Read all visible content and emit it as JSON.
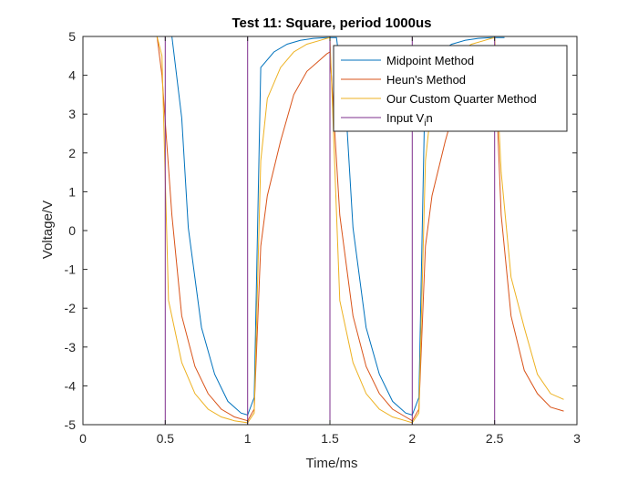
{
  "chart_data": {
    "type": "line",
    "title": "Test 11: Square, period 1000us",
    "xlabel": "Time/ms",
    "ylabel": "Voltage/V",
    "xlim": [
      0,
      3
    ],
    "ylim": [
      -5,
      5
    ],
    "xticks": [
      0,
      0.5,
      1,
      1.5,
      2,
      2.5,
      3
    ],
    "xtick_labels": [
      "0",
      "0.5",
      "1",
      "1.5",
      "2",
      "2.5",
      "3"
    ],
    "yticks": [
      -5,
      -4,
      -3,
      -2,
      -1,
      0,
      1,
      2,
      3,
      4,
      5
    ],
    "ytick_labels": [
      "-5",
      "-4",
      "-3",
      "-2",
      "-1",
      "0",
      "1",
      "2",
      "3",
      "4",
      "5"
    ],
    "grid": false,
    "legend_position": "top-right",
    "series": [
      {
        "name": "Midpoint Method",
        "color": "#0072BD",
        "x": [
          0,
          0.54,
          0.6,
          0.64,
          0.72,
          0.8,
          0.88,
          0.96,
          1.0,
          1.04,
          1.08,
          1.16,
          1.24,
          1.32,
          1.4,
          1.48,
          1.54,
          1.6,
          1.64,
          1.72,
          1.8,
          1.88,
          1.96,
          2.0,
          2.04,
          2.08,
          2.16,
          2.24,
          2.32,
          2.4,
          2.48,
          2.54,
          2.56
        ],
        "y": [
          5,
          5,
          2.9,
          0.07,
          -2.5,
          -3.7,
          -4.4,
          -4.7,
          -4.75,
          -4.3,
          4.2,
          4.6,
          4.8,
          4.9,
          4.95,
          4.97,
          4.97,
          2.9,
          0.07,
          -2.5,
          -3.7,
          -4.4,
          -4.7,
          -4.75,
          -4.3,
          4.2,
          4.6,
          4.8,
          4.9,
          4.95,
          4.97,
          4.97,
          4.97
        ]
      },
      {
        "name": "Heun's Method",
        "color": "#D95319",
        "x": [
          0,
          0.45,
          0.48,
          0.54,
          0.6,
          0.68,
          0.76,
          0.84,
          0.92,
          1.0,
          1.04,
          1.08,
          1.12,
          1.2,
          1.28,
          1.36,
          1.44,
          1.48,
          1.5,
          1.56,
          1.64,
          1.72,
          1.8,
          1.88,
          1.96,
          2.0,
          2.04,
          2.08,
          2.12,
          2.2,
          2.28,
          2.36,
          2.44,
          2.48,
          2.5,
          2.54,
          2.6,
          2.68,
          2.76,
          2.84,
          2.92
        ],
        "y": [
          5,
          5,
          4.0,
          0.4,
          -2.2,
          -3.5,
          -4.2,
          -4.6,
          -4.8,
          -4.9,
          -4.6,
          -0.4,
          0.9,
          2.3,
          3.5,
          4.1,
          4.4,
          4.55,
          4.6,
          0.4,
          -2.2,
          -3.5,
          -4.2,
          -4.6,
          -4.8,
          -4.9,
          -4.6,
          -0.4,
          0.9,
          2.3,
          3.5,
          4.1,
          4.4,
          4.55,
          4.6,
          0.4,
          -2.2,
          -3.6,
          -4.2,
          -4.55,
          -4.65
        ]
      },
      {
        "name": "Our Custom Quarter Method",
        "color": "#EDB120",
        "x": [
          0,
          0.45,
          0.48,
          0.52,
          0.6,
          0.68,
          0.76,
          0.84,
          0.92,
          1.0,
          1.04,
          1.08,
          1.12,
          1.2,
          1.28,
          1.36,
          1.44,
          1.48,
          1.5,
          1.56,
          1.64,
          1.72,
          1.8,
          1.88,
          1.96,
          2.0,
          2.04,
          2.08,
          2.12,
          2.2,
          2.28,
          2.36,
          2.44,
          2.48,
          2.5,
          2.54,
          2.6,
          2.68,
          2.76,
          2.84,
          2.92
        ],
        "y": [
          5,
          5,
          4.5,
          -1.8,
          -3.4,
          -4.2,
          -4.6,
          -4.8,
          -4.9,
          -4.95,
          -4.7,
          1.8,
          3.4,
          4.2,
          4.6,
          4.8,
          4.9,
          4.95,
          4.97,
          -1.8,
          -3.4,
          -4.2,
          -4.6,
          -4.8,
          -4.9,
          -4.95,
          -4.7,
          1.8,
          3.4,
          4.2,
          4.6,
          4.8,
          4.9,
          4.95,
          4.97,
          1.5,
          -1.2,
          -2.5,
          -3.7,
          -4.2,
          -4.35
        ]
      },
      {
        "name": "Input V_in",
        "color": "#7E2F8E",
        "x": [
          0,
          0.5,
          0.5,
          1.0,
          1.0,
          1.5,
          1.5,
          2.0,
          2.0,
          2.5,
          2.5,
          3.0
        ],
        "y": [
          5,
          5,
          -5,
          -5,
          5,
          5,
          -5,
          -5,
          5,
          5,
          -5,
          -5
        ]
      }
    ],
    "legend": [
      {
        "label": "Midpoint Method",
        "color": "#0072BD"
      },
      {
        "label": "Heun's Method",
        "color": "#D95319"
      },
      {
        "label": "Our Custom Quarter Method",
        "color": "#EDB120"
      },
      {
        "label_main": "Input V",
        "label_sub": "i",
        "label_tail": "n",
        "color": "#7E2F8E"
      }
    ]
  }
}
